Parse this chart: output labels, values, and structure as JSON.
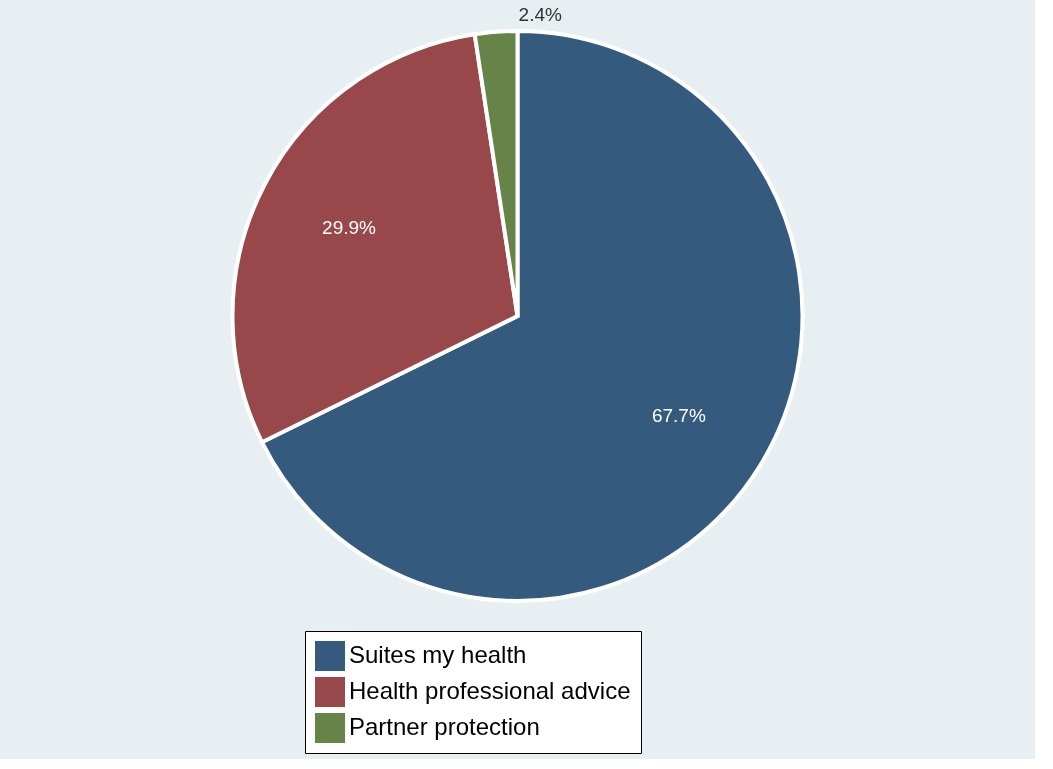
{
  "chart_data": {
    "type": "pie",
    "categories": [
      "Suites my health",
      "Health professional advice",
      "Partner protection"
    ],
    "values": [
      67.7,
      29.9,
      2.4
    ],
    "colors": [
      "#345a7e",
      "#98474b",
      "#668447"
    ],
    "value_labels": [
      "67.7%",
      "29.9%",
      "2.4%"
    ],
    "legend": "bottom"
  }
}
